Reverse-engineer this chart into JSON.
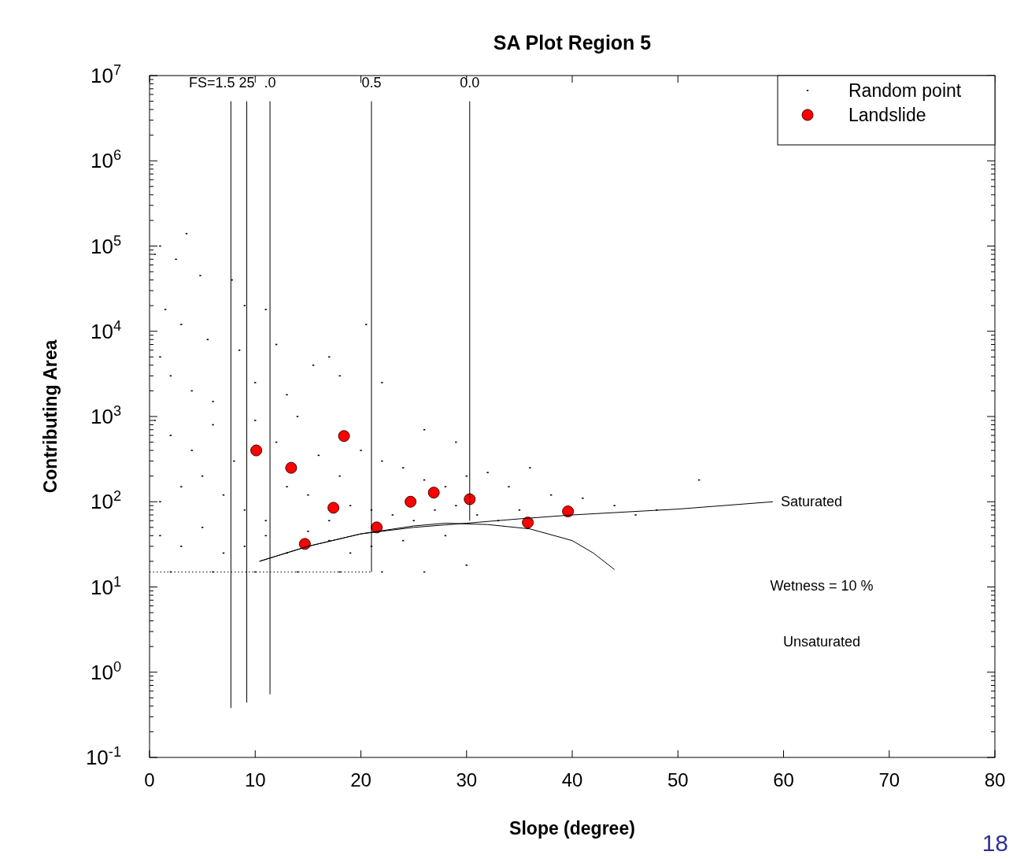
{
  "chart_data": {
    "type": "scatter",
    "title": "SA Plot Region 5",
    "xlabel": "Slope (degree)",
    "ylabel": "Contributing Area",
    "log": "y",
    "xlim": [
      0,
      80
    ],
    "xticks": [
      0,
      10,
      20,
      30,
      40,
      50,
      60,
      70,
      80
    ],
    "ylim": [
      0.1,
      10000000
    ],
    "yticks": [
      {
        "value": 0.1,
        "label": "10$^{-1}$"
      },
      {
        "value": 1,
        "label": "10$^{0}$"
      },
      {
        "value": 10,
        "label": "10$^{1}$"
      },
      {
        "value": 100,
        "label": "10$^{2}$"
      },
      {
        "value": 1000,
        "label": "10$^{3}$"
      },
      {
        "value": 10000,
        "label": "10$^{4}$"
      },
      {
        "value": 100000,
        "label": "10$^{5}$"
      },
      {
        "value": 1000000,
        "label": "10$^{6}$"
      },
      {
        "value": 10000000,
        "label": "10$^{7}$"
      }
    ],
    "grid": false,
    "legend": "top right",
    "series": [
      {
        "name": "Random point",
        "color": "#000000",
        "marker": "square",
        "x": [
          0.5,
          1,
          3.5,
          2.5,
          4.8,
          7.8,
          9,
          11,
          1.5,
          3,
          5.5,
          8.5,
          12,
          15.5,
          20.5,
          17,
          1,
          2,
          4,
          6,
          10,
          13,
          18,
          22,
          26,
          29,
          0.5,
          2,
          4,
          6,
          8,
          10,
          12,
          14,
          16,
          18,
          20,
          22,
          24,
          26,
          28,
          30,
          32,
          34,
          36,
          1,
          3,
          5,
          7,
          9,
          11,
          13,
          15,
          17,
          19,
          21,
          23,
          25,
          27,
          29,
          31,
          33,
          35,
          38,
          41,
          44,
          46,
          48,
          52,
          1,
          3,
          5,
          7,
          9,
          11,
          13,
          15,
          17,
          19,
          21,
          24,
          28,
          30,
          2,
          6,
          10,
          14,
          18,
          22,
          26
        ],
        "values": [
          80000,
          100000,
          140000,
          70000,
          45000,
          40000,
          20000,
          18000,
          18000,
          12000,
          8000,
          6000,
          7000,
          4000,
          12000,
          5000,
          5000,
          3000,
          2000,
          1500,
          2500,
          1800,
          3000,
          2500,
          700,
          500,
          900,
          600,
          400,
          800,
          300,
          900,
          500,
          1000,
          350,
          200,
          400,
          300,
          250,
          180,
          150,
          200,
          220,
          150,
          250,
          100,
          150,
          200,
          120,
          80,
          60,
          150,
          120,
          60,
          90,
          80,
          70,
          60,
          80,
          90,
          70,
          60,
          80,
          120,
          110,
          90,
          70,
          80,
          180,
          40,
          30,
          50,
          25,
          30,
          40,
          25,
          45,
          35,
          25,
          30,
          35,
          40,
          18,
          15,
          15,
          15,
          15,
          15,
          15,
          15
        ]
      },
      {
        "name": "Landslide",
        "color": "#ff0000",
        "marker": "circle",
        "x": [
          10.1,
          13.4,
          18.4,
          17.4,
          14.7,
          21.5,
          24.7,
          26.9,
          30.3,
          35.8,
          39.6
        ],
        "values": [
          400,
          250,
          590,
          85,
          32,
          50,
          100,
          128,
          107,
          57,
          77
        ]
      },
      {
        "name": "FS=1.5",
        "type": "line",
        "color": "#000000",
        "marker": "none",
        "line_style": "solid",
        "x": [
          7.7,
          7.7
        ],
        "values": [
          0.38,
          5000000
        ]
      },
      {
        "name": "25",
        "type": "line",
        "color": "#000000",
        "marker": "none",
        "line_style": "solid",
        "x": [
          9.2,
          9.2
        ],
        "values": [
          0.44,
          5000000
        ]
      },
      {
        "name": ".0",
        "type": "line",
        "color": "#000000",
        "marker": "none",
        "line_style": "solid",
        "x": [
          11.4,
          11.4
        ],
        "values": [
          0.55,
          5000000
        ]
      },
      {
        "name": "0.5",
        "type": "line",
        "color": "#000000",
        "marker": "none",
        "line_style": "solid",
        "x": [
          21,
          21
        ],
        "values": [
          15,
          5000000
        ]
      },
      {
        "name": "0.0",
        "type": "line",
        "color": "#000000",
        "marker": "none",
        "line_style": "solid",
        "x": [
          30.3,
          30.3
        ],
        "values": [
          60,
          5000000
        ]
      },
      {
        "type": "line",
        "color": "#000000",
        "marker": "none",
        "line_style": "dotted",
        "x": [
          0,
          21
        ],
        "values": [
          15,
          15
        ]
      },
      {
        "name": "Saturated",
        "type": "line",
        "color": "#000000",
        "marker": "none",
        "line_style": "solid",
        "x": [
          10.4,
          15,
          20,
          25,
          30,
          35,
          40,
          50,
          59
        ],
        "values": [
          20,
          30,
          42,
          50,
          56,
          63,
          70,
          82,
          100
        ]
      },
      {
        "type": "line",
        "color": "#000000",
        "marker": "none",
        "line_style": "solid",
        "x": [
          10.4,
          15,
          20,
          25,
          28,
          32,
          36,
          40,
          42,
          44
        ],
        "values": [
          20,
          30,
          42,
          52,
          56,
          54,
          48,
          35,
          25,
          16
        ]
      }
    ],
    "annotations": [
      "Wetness = 10 %",
      "Unsaturated",
      "18"
    ]
  }
}
